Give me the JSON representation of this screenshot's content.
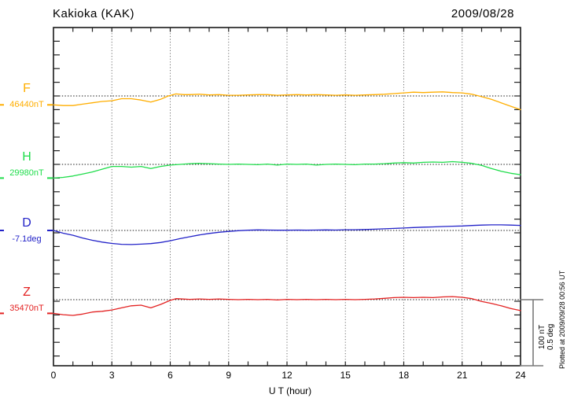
{
  "header": {
    "title": "Kakioka (KAK)",
    "date": "2009/08/28"
  },
  "x_axis": {
    "label": "U T (hour)",
    "tick_labels": [
      "0",
      "3",
      "6",
      "9",
      "12",
      "15",
      "18",
      "21",
      "24"
    ]
  },
  "scale_bar": {
    "labels": [
      "100 nT",
      "0.5 deg"
    ]
  },
  "plotted_note": "Plotted at 2009/09/28 00:56 UT",
  "chart_data": {
    "type": "line",
    "title": "Kakioka (KAK)",
    "date": "2009/08/28",
    "xlabel": "U T (hour)",
    "x_range_hours": [
      0,
      24
    ],
    "x_gridline_hours": [
      3,
      6,
      9,
      12,
      15,
      18,
      21
    ],
    "grid": "vertical dotted gridlines every 3 h; dotted horizontal baseline per channel",
    "y_scale_note": "20 nT (0.1 deg) per y tick; scale bar = 100 nT / 0.5 deg",
    "series": [
      {
        "name": "F",
        "unit": "nT",
        "color": "#FFAE00",
        "baseline_label": "46440nT",
        "baseline_value": 46440,
        "points_offsets_from_baseline": [
          [
            0,
            -13
          ],
          [
            0.5,
            -14
          ],
          [
            1,
            -14
          ],
          [
            1.5,
            -12
          ],
          [
            2,
            -10
          ],
          [
            2.5,
            -8
          ],
          [
            3,
            -7
          ],
          [
            3.5,
            -4
          ],
          [
            4,
            -4
          ],
          [
            4.5,
            -6
          ],
          [
            5,
            -9
          ],
          [
            5.5,
            -5
          ],
          [
            5.9,
            0
          ],
          [
            6.3,
            3
          ],
          [
            6.7,
            2
          ],
          [
            7,
            2
          ],
          [
            7.5,
            2.5
          ],
          [
            8,
            1.5
          ],
          [
            8.5,
            2
          ],
          [
            9,
            1
          ],
          [
            9.5,
            1
          ],
          [
            10,
            1.5
          ],
          [
            10.5,
            2
          ],
          [
            11,
            2
          ],
          [
            11.5,
            1
          ],
          [
            12,
            1.5
          ],
          [
            12.5,
            2
          ],
          [
            13,
            1.5
          ],
          [
            13.5,
            2
          ],
          [
            14,
            1.5
          ],
          [
            14.5,
            1
          ],
          [
            15,
            1.5
          ],
          [
            15.5,
            1
          ],
          [
            16,
            1.5
          ],
          [
            16.5,
            2
          ],
          [
            17,
            2.5
          ],
          [
            17.5,
            3.5
          ],
          [
            18,
            4.5
          ],
          [
            18.5,
            5.5
          ],
          [
            19,
            5
          ],
          [
            19.5,
            5.5
          ],
          [
            20,
            6
          ],
          [
            20.5,
            5
          ],
          [
            21,
            4.5
          ],
          [
            21.5,
            2.5
          ],
          [
            22,
            -1
          ],
          [
            22.5,
            -5
          ],
          [
            23,
            -10
          ],
          [
            23.5,
            -15
          ],
          [
            24,
            -20
          ]
        ]
      },
      {
        "name": "H",
        "unit": "nT",
        "color": "#1FDD4B",
        "baseline_label": "29980nT",
        "baseline_value": 29980,
        "points_offsets_from_baseline": [
          [
            0,
            -20
          ],
          [
            0.5,
            -19
          ],
          [
            1,
            -17
          ],
          [
            1.5,
            -14
          ],
          [
            2,
            -11
          ],
          [
            2.5,
            -7
          ],
          [
            3,
            -3
          ],
          [
            3.5,
            -3
          ],
          [
            4,
            -4
          ],
          [
            4.5,
            -3
          ],
          [
            5,
            -6
          ],
          [
            5.5,
            -3
          ],
          [
            6,
            -1
          ],
          [
            6.5,
            0
          ],
          [
            7,
            1
          ],
          [
            7.5,
            1.5
          ],
          [
            8,
            1
          ],
          [
            8.5,
            0.5
          ],
          [
            9,
            0
          ],
          [
            9.5,
            0.5
          ],
          [
            10,
            0
          ],
          [
            10.5,
            -0.5
          ],
          [
            11,
            0.5
          ],
          [
            11.5,
            -1
          ],
          [
            12,
            0.5
          ],
          [
            12.5,
            0
          ],
          [
            13,
            0.5
          ],
          [
            13.5,
            -1
          ],
          [
            14,
            0
          ],
          [
            14.5,
            0.5
          ],
          [
            15,
            0
          ],
          [
            15.5,
            -0.5
          ],
          [
            16,
            0.5
          ],
          [
            16.5,
            0.5
          ],
          [
            17,
            1
          ],
          [
            17.5,
            2
          ],
          [
            18,
            2.5
          ],
          [
            18.5,
            2
          ],
          [
            19,
            3
          ],
          [
            19.5,
            3.5
          ],
          [
            20,
            3
          ],
          [
            20.5,
            4
          ],
          [
            21,
            3
          ],
          [
            21.5,
            1.5
          ],
          [
            22,
            -1.5
          ],
          [
            22.5,
            -6
          ],
          [
            23,
            -10
          ],
          [
            23.5,
            -13
          ],
          [
            24,
            -15
          ]
        ]
      },
      {
        "name": "D",
        "unit": "deg",
        "color": "#2323C8",
        "baseline_label": "-7.1deg",
        "baseline_value": -7.1,
        "points_offsets_from_baseline": [
          [
            0,
            0
          ],
          [
            0.5,
            -0.02
          ],
          [
            1,
            -0.035
          ],
          [
            1.5,
            -0.055
          ],
          [
            2,
            -0.072
          ],
          [
            2.5,
            -0.085
          ],
          [
            3,
            -0.095
          ],
          [
            3.5,
            -0.101
          ],
          [
            4,
            -0.103
          ],
          [
            4.5,
            -0.1
          ],
          [
            5,
            -0.096
          ],
          [
            5.5,
            -0.088
          ],
          [
            6,
            -0.075
          ],
          [
            6.5,
            -0.06
          ],
          [
            7,
            -0.046
          ],
          [
            7.5,
            -0.033
          ],
          [
            8,
            -0.022
          ],
          [
            8.5,
            -0.013
          ],
          [
            9,
            -0.007
          ],
          [
            9.5,
            -0.002
          ],
          [
            10,
            0.002
          ],
          [
            10.5,
            0.004
          ],
          [
            11,
            0.003
          ],
          [
            11.5,
            0.002
          ],
          [
            12,
            0.002
          ],
          [
            12.5,
            0.003
          ],
          [
            13,
            0.002
          ],
          [
            13.5,
            0.003
          ],
          [
            14,
            0.004
          ],
          [
            14.5,
            0.003
          ],
          [
            15,
            0.005
          ],
          [
            15.5,
            0.005
          ],
          [
            16,
            0.007
          ],
          [
            16.5,
            0.009
          ],
          [
            17,
            0.012
          ],
          [
            17.5,
            0.015
          ],
          [
            18,
            0.018
          ],
          [
            18.5,
            0.021
          ],
          [
            19,
            0.024
          ],
          [
            19.5,
            0.026
          ],
          [
            20,
            0.029
          ],
          [
            20.5,
            0.031
          ],
          [
            21,
            0.033
          ],
          [
            21.5,
            0.036
          ],
          [
            22,
            0.039
          ],
          [
            22.5,
            0.041
          ],
          [
            23,
            0.041
          ],
          [
            23.5,
            0.039
          ],
          [
            24,
            0.037
          ]
        ]
      },
      {
        "name": "Z",
        "unit": "nT",
        "color": "#E32222",
        "baseline_label": "35470nT",
        "baseline_value": 35470,
        "points_offsets_from_baseline": [
          [
            0,
            -20
          ],
          [
            0.5,
            -22
          ],
          [
            1,
            -23
          ],
          [
            1.5,
            -21
          ],
          [
            2,
            -18
          ],
          [
            2.5,
            -17
          ],
          [
            3,
            -15
          ],
          [
            3.5,
            -12
          ],
          [
            4,
            -9
          ],
          [
            4.5,
            -8
          ],
          [
            5,
            -12
          ],
          [
            5.5,
            -7
          ],
          [
            6,
            -1
          ],
          [
            6.3,
            1.5
          ],
          [
            7,
            0.5
          ],
          [
            7.5,
            1
          ],
          [
            8,
            0.5
          ],
          [
            8.5,
            1
          ],
          [
            9,
            0.5
          ],
          [
            9.5,
            0
          ],
          [
            10,
            0.5
          ],
          [
            10.5,
            0
          ],
          [
            11,
            0.5
          ],
          [
            11.5,
            -0.5
          ],
          [
            12,
            0.5
          ],
          [
            12.5,
            0
          ],
          [
            13,
            0.5
          ],
          [
            13.5,
            0
          ],
          [
            14,
            0.5
          ],
          [
            14.5,
            0
          ],
          [
            15,
            0.5
          ],
          [
            15.5,
            0
          ],
          [
            16,
            0.5
          ],
          [
            16.5,
            1
          ],
          [
            17,
            2
          ],
          [
            17.5,
            3
          ],
          [
            18,
            3.5
          ],
          [
            18.5,
            3
          ],
          [
            19,
            3.5
          ],
          [
            19.5,
            3
          ],
          [
            20,
            4
          ],
          [
            20.5,
            4.5
          ],
          [
            21,
            3.5
          ],
          [
            21.5,
            1.5
          ],
          [
            22,
            -2.5
          ],
          [
            22.5,
            -5.5
          ],
          [
            23,
            -9
          ],
          [
            23.5,
            -13
          ],
          [
            24,
            -16
          ]
        ]
      }
    ]
  }
}
